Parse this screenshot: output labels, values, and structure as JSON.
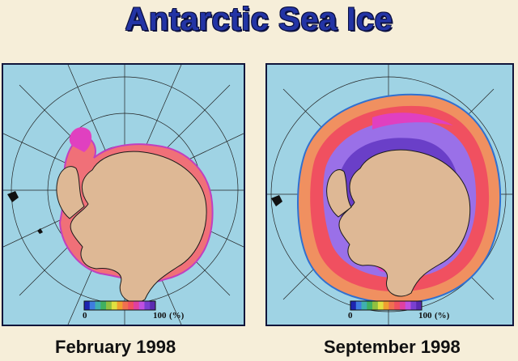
{
  "title": "Antarctic Sea Ice",
  "maps": [
    {
      "caption": "February 1998",
      "colorbar": {
        "min_label": "0",
        "max_label": "100",
        "unit_label": "(%)"
      }
    },
    {
      "caption": "September 1998",
      "colorbar": {
        "min_label": "0",
        "max_label": "100",
        "unit_label": "(%)"
      }
    }
  ],
  "colors": {
    "ocean": "#9fd3e4",
    "land": "#deb895",
    "title": "#2334a5",
    "background": "#f6eed9"
  },
  "colorbar_colors": [
    "#1d24b0",
    "#3e7de0",
    "#3fb0b0",
    "#40b060",
    "#90c040",
    "#e0e040",
    "#f0a030",
    "#f07050",
    "#f05060",
    "#e040a0",
    "#c050e0",
    "#7a3fd0",
    "#5a2ab0"
  ]
}
